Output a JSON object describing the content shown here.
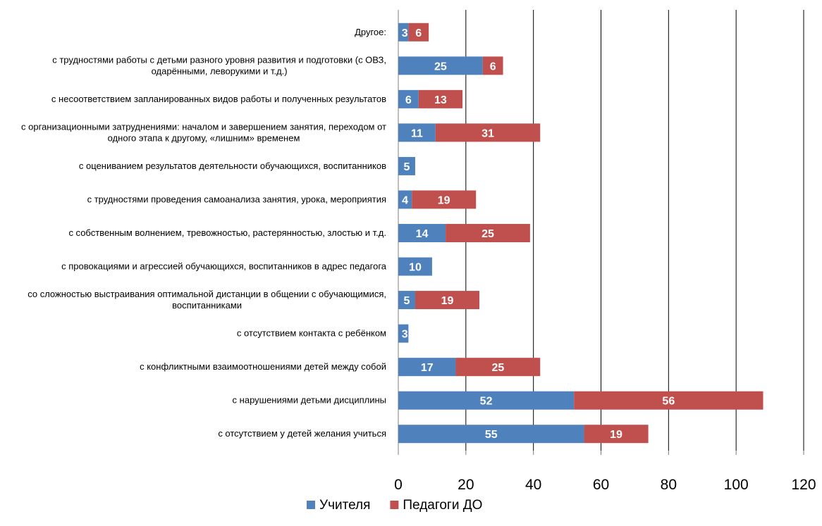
{
  "chart_data": {
    "type": "bar",
    "orientation": "horizontal",
    "stacked": true,
    "categories": [
      "Другое:",
      "с трудностями работы с детьми разного уровня развития и подготовки (с  ОВЗ, одарёнными, леворукими и т.д.)",
      "с несоответствием запланированных видов работы и полученных результатов",
      "с организационными затруднениями: началом и завершением занятия, переходом от одного этапа к другому, «лишним» временем",
      "с оцениванием результатов деятельности обучающихся, воспитанников",
      "с трудностями проведения самоанализа занятия, урока, мероприятия",
      "с собственным волнением, тревожностью, растерянностью, злостью и т.д.",
      "с провокациями и агрессией обучающихся, воспитанников в адрес педагога",
      "со сложностью выстраивания оптимальной дистанции в общении с обучающимися, воспитанниками",
      "с отсутствием контакта с ребёнком",
      "с конфликтными взаимоотношениями детей между собой",
      "с нарушениями детьми дисциплины",
      "с отсутствием у детей желания учиться"
    ],
    "series": [
      {
        "name": "Учителя",
        "color": "#4F81BD",
        "values": [
          3,
          25,
          6,
          11,
          5,
          4,
          14,
          10,
          5,
          3,
          17,
          52,
          55
        ]
      },
      {
        "name": "Педагоги ДО",
        "color": "#C0504D",
        "values": [
          6,
          6,
          13,
          31,
          0,
          19,
          25,
          0,
          19,
          0,
          25,
          56,
          19
        ]
      }
    ],
    "value_labels": [
      [
        "3",
        "6"
      ],
      [
        "25",
        "6"
      ],
      [
        "6",
        "13"
      ],
      [
        "11",
        "31"
      ],
      [
        "5",
        "0"
      ],
      [
        "4",
        "19"
      ],
      [
        "14",
        "25"
      ],
      [
        "10",
        "0"
      ],
      [
        "5",
        "19"
      ],
      [
        "3",
        "0"
      ],
      [
        "17",
        "25"
      ],
      [
        "52",
        "56"
      ],
      [
        "55",
        "19"
      ]
    ],
    "xlim": [
      0,
      120
    ],
    "xticks": [
      "0",
      "20",
      "40",
      "60",
      "80",
      "100",
      "120"
    ],
    "grid": true,
    "legend_position": "bottom"
  }
}
